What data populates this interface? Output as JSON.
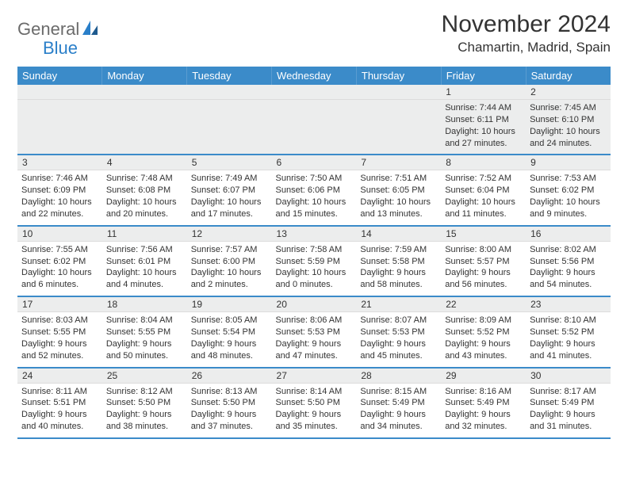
{
  "logo": {
    "text1": "General",
    "text2": "Blue"
  },
  "header": {
    "month_title": "November 2024",
    "location": "Chamartin, Madrid, Spain"
  },
  "colors": {
    "header_bg": "#3b8bc9",
    "header_text": "#ffffff",
    "daynum_bg": "#eceded",
    "row_border": "#3b8bc9",
    "logo_gray": "#6b6b6b",
    "logo_blue": "#2a7fc9"
  },
  "day_labels": [
    "Sunday",
    "Monday",
    "Tuesday",
    "Wednesday",
    "Thursday",
    "Friday",
    "Saturday"
  ],
  "weeks": [
    [
      {
        "empty": true
      },
      {
        "empty": true
      },
      {
        "empty": true
      },
      {
        "empty": true
      },
      {
        "empty": true
      },
      {
        "num": "1",
        "sunrise": "Sunrise: 7:44 AM",
        "sunset": "Sunset: 6:11 PM",
        "dl1": "Daylight: 10 hours",
        "dl2": "and 27 minutes."
      },
      {
        "num": "2",
        "sunrise": "Sunrise: 7:45 AM",
        "sunset": "Sunset: 6:10 PM",
        "dl1": "Daylight: 10 hours",
        "dl2": "and 24 minutes."
      }
    ],
    [
      {
        "num": "3",
        "sunrise": "Sunrise: 7:46 AM",
        "sunset": "Sunset: 6:09 PM",
        "dl1": "Daylight: 10 hours",
        "dl2": "and 22 minutes."
      },
      {
        "num": "4",
        "sunrise": "Sunrise: 7:48 AM",
        "sunset": "Sunset: 6:08 PM",
        "dl1": "Daylight: 10 hours",
        "dl2": "and 20 minutes."
      },
      {
        "num": "5",
        "sunrise": "Sunrise: 7:49 AM",
        "sunset": "Sunset: 6:07 PM",
        "dl1": "Daylight: 10 hours",
        "dl2": "and 17 minutes."
      },
      {
        "num": "6",
        "sunrise": "Sunrise: 7:50 AM",
        "sunset": "Sunset: 6:06 PM",
        "dl1": "Daylight: 10 hours",
        "dl2": "and 15 minutes."
      },
      {
        "num": "7",
        "sunrise": "Sunrise: 7:51 AM",
        "sunset": "Sunset: 6:05 PM",
        "dl1": "Daylight: 10 hours",
        "dl2": "and 13 minutes."
      },
      {
        "num": "8",
        "sunrise": "Sunrise: 7:52 AM",
        "sunset": "Sunset: 6:04 PM",
        "dl1": "Daylight: 10 hours",
        "dl2": "and 11 minutes."
      },
      {
        "num": "9",
        "sunrise": "Sunrise: 7:53 AM",
        "sunset": "Sunset: 6:02 PM",
        "dl1": "Daylight: 10 hours",
        "dl2": "and 9 minutes."
      }
    ],
    [
      {
        "num": "10",
        "sunrise": "Sunrise: 7:55 AM",
        "sunset": "Sunset: 6:02 PM",
        "dl1": "Daylight: 10 hours",
        "dl2": "and 6 minutes."
      },
      {
        "num": "11",
        "sunrise": "Sunrise: 7:56 AM",
        "sunset": "Sunset: 6:01 PM",
        "dl1": "Daylight: 10 hours",
        "dl2": "and 4 minutes."
      },
      {
        "num": "12",
        "sunrise": "Sunrise: 7:57 AM",
        "sunset": "Sunset: 6:00 PM",
        "dl1": "Daylight: 10 hours",
        "dl2": "and 2 minutes."
      },
      {
        "num": "13",
        "sunrise": "Sunrise: 7:58 AM",
        "sunset": "Sunset: 5:59 PM",
        "dl1": "Daylight: 10 hours",
        "dl2": "and 0 minutes."
      },
      {
        "num": "14",
        "sunrise": "Sunrise: 7:59 AM",
        "sunset": "Sunset: 5:58 PM",
        "dl1": "Daylight: 9 hours",
        "dl2": "and 58 minutes."
      },
      {
        "num": "15",
        "sunrise": "Sunrise: 8:00 AM",
        "sunset": "Sunset: 5:57 PM",
        "dl1": "Daylight: 9 hours",
        "dl2": "and 56 minutes."
      },
      {
        "num": "16",
        "sunrise": "Sunrise: 8:02 AM",
        "sunset": "Sunset: 5:56 PM",
        "dl1": "Daylight: 9 hours",
        "dl2": "and 54 minutes."
      }
    ],
    [
      {
        "num": "17",
        "sunrise": "Sunrise: 8:03 AM",
        "sunset": "Sunset: 5:55 PM",
        "dl1": "Daylight: 9 hours",
        "dl2": "and 52 minutes."
      },
      {
        "num": "18",
        "sunrise": "Sunrise: 8:04 AM",
        "sunset": "Sunset: 5:55 PM",
        "dl1": "Daylight: 9 hours",
        "dl2": "and 50 minutes."
      },
      {
        "num": "19",
        "sunrise": "Sunrise: 8:05 AM",
        "sunset": "Sunset: 5:54 PM",
        "dl1": "Daylight: 9 hours",
        "dl2": "and 48 minutes."
      },
      {
        "num": "20",
        "sunrise": "Sunrise: 8:06 AM",
        "sunset": "Sunset: 5:53 PM",
        "dl1": "Daylight: 9 hours",
        "dl2": "and 47 minutes."
      },
      {
        "num": "21",
        "sunrise": "Sunrise: 8:07 AM",
        "sunset": "Sunset: 5:53 PM",
        "dl1": "Daylight: 9 hours",
        "dl2": "and 45 minutes."
      },
      {
        "num": "22",
        "sunrise": "Sunrise: 8:09 AM",
        "sunset": "Sunset: 5:52 PM",
        "dl1": "Daylight: 9 hours",
        "dl2": "and 43 minutes."
      },
      {
        "num": "23",
        "sunrise": "Sunrise: 8:10 AM",
        "sunset": "Sunset: 5:52 PM",
        "dl1": "Daylight: 9 hours",
        "dl2": "and 41 minutes."
      }
    ],
    [
      {
        "num": "24",
        "sunrise": "Sunrise: 8:11 AM",
        "sunset": "Sunset: 5:51 PM",
        "dl1": "Daylight: 9 hours",
        "dl2": "and 40 minutes."
      },
      {
        "num": "25",
        "sunrise": "Sunrise: 8:12 AM",
        "sunset": "Sunset: 5:50 PM",
        "dl1": "Daylight: 9 hours",
        "dl2": "and 38 minutes."
      },
      {
        "num": "26",
        "sunrise": "Sunrise: 8:13 AM",
        "sunset": "Sunset: 5:50 PM",
        "dl1": "Daylight: 9 hours",
        "dl2": "and 37 minutes."
      },
      {
        "num": "27",
        "sunrise": "Sunrise: 8:14 AM",
        "sunset": "Sunset: 5:50 PM",
        "dl1": "Daylight: 9 hours",
        "dl2": "and 35 minutes."
      },
      {
        "num": "28",
        "sunrise": "Sunrise: 8:15 AM",
        "sunset": "Sunset: 5:49 PM",
        "dl1": "Daylight: 9 hours",
        "dl2": "and 34 minutes."
      },
      {
        "num": "29",
        "sunrise": "Sunrise: 8:16 AM",
        "sunset": "Sunset: 5:49 PM",
        "dl1": "Daylight: 9 hours",
        "dl2": "and 32 minutes."
      },
      {
        "num": "30",
        "sunrise": "Sunrise: 8:17 AM",
        "sunset": "Sunset: 5:49 PM",
        "dl1": "Daylight: 9 hours",
        "dl2": "and 31 minutes."
      }
    ]
  ]
}
